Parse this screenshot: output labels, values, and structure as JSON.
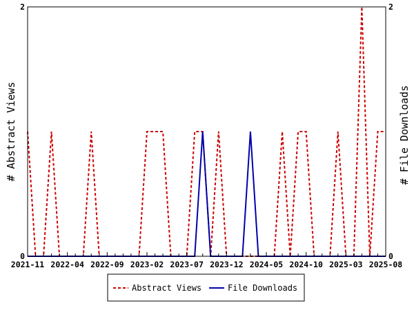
{
  "chart_data": {
    "type": "line",
    "y_left_label": "# Abstract Views",
    "y_right_label": "# File Downloads",
    "ylim": [
      0,
      2
    ],
    "y_ticks": [
      "0",
      "2"
    ],
    "x_tick_labels": [
      "2021-11",
      "2022-04",
      "2022-09",
      "2023-02",
      "2023-07",
      "2023-12",
      "2024-05",
      "2024-10",
      "2025-03",
      "2025-08"
    ],
    "x_range": [
      "2021-11",
      "2025-08"
    ],
    "months": [
      "2021-11",
      "2021-12",
      "2022-01",
      "2022-02",
      "2022-03",
      "2022-04",
      "2022-05",
      "2022-06",
      "2022-07",
      "2022-08",
      "2022-09",
      "2022-10",
      "2022-11",
      "2022-12",
      "2023-01",
      "2023-02",
      "2023-03",
      "2023-04",
      "2023-05",
      "2023-06",
      "2023-07",
      "2023-08",
      "2023-09",
      "2023-10",
      "2023-11",
      "2023-12",
      "2024-01",
      "2024-02",
      "2024-03",
      "2024-04",
      "2024-05",
      "2024-06",
      "2024-07",
      "2024-08",
      "2024-09",
      "2024-10",
      "2024-11",
      "2024-12",
      "2025-01",
      "2025-02",
      "2025-03",
      "2025-04",
      "2025-05",
      "2025-06",
      "2025-07",
      "2025-08"
    ],
    "series": [
      {
        "name": "Abstract Views",
        "color": "#cc0000",
        "style": "dashed",
        "values": [
          1,
          0,
          0,
          1,
          0,
          0,
          0,
          0,
          1,
          0,
          0,
          0,
          0,
          0,
          0,
          1,
          1,
          1,
          0,
          0,
          0,
          1,
          1,
          0,
          1,
          0,
          0,
          0,
          0,
          0,
          0,
          0,
          1,
          0,
          1,
          1,
          0,
          0,
          0,
          1,
          0,
          0,
          2,
          0,
          1,
          1
        ]
      },
      {
        "name": "File Downloads",
        "color": "#0000aa",
        "style": "solid",
        "values": [
          0,
          0,
          0,
          0,
          0,
          0,
          0,
          0,
          0,
          0,
          0,
          0,
          0,
          0,
          0,
          0,
          0,
          0,
          0,
          0,
          0,
          0,
          1,
          0,
          0,
          0,
          0,
          0,
          1,
          0,
          0,
          0,
          0,
          0,
          0,
          0,
          0,
          0,
          0,
          0,
          0,
          0,
          0,
          0,
          0,
          0
        ]
      }
    ],
    "grid": false,
    "legend_position": "bottom-center"
  }
}
